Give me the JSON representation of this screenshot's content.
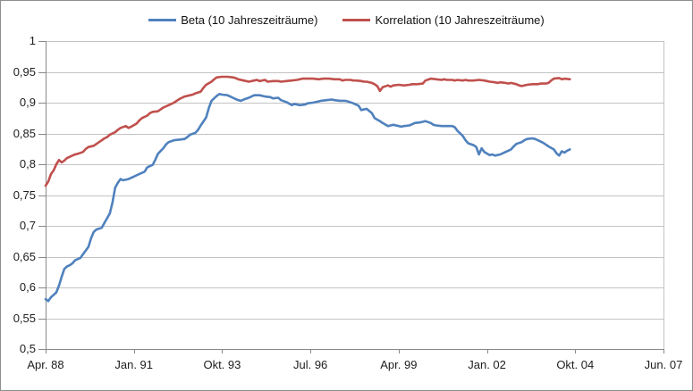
{
  "colors": {
    "background": "#ffffff",
    "border": "#8e8e8e",
    "gridline": "#c3c3c3",
    "axis": "#898989",
    "label": "#202020",
    "series_beta": "#4f81bd",
    "series_korrelation": "#c0504d"
  },
  "legend": {
    "position": "top",
    "items": [
      {
        "label": "Beta (10 Jahreszeiträume)",
        "color": "#4f81bd"
      },
      {
        "label": "Korrelation (10 Jahreszeiträume)",
        "color": "#c0504d"
      }
    ]
  },
  "chart_data": {
    "type": "line",
    "title": "",
    "grid": true,
    "legend_position": "top",
    "x_axis": {
      "unit": "months since Apr. 88",
      "range": [
        0,
        231
      ],
      "ticks": [
        {
          "t": 0,
          "label": "Apr. 88"
        },
        {
          "t": 33,
          "label": "Jan. 91"
        },
        {
          "t": 66,
          "label": "Okt. 93"
        },
        {
          "t": 99,
          "label": "Jul. 96"
        },
        {
          "t": 132,
          "label": "Apr. 99"
        },
        {
          "t": 165,
          "label": "Jan. 02"
        },
        {
          "t": 198,
          "label": "Okt. 04"
        },
        {
          "t": 231,
          "label": "Jun. 07"
        }
      ]
    },
    "y_axis": {
      "range": [
        0.5,
        1.0
      ],
      "tick_step": 0.05,
      "ticks": [
        {
          "v": 1.0,
          "label": "1"
        },
        {
          "v": 0.95,
          "label": "0,95"
        },
        {
          "v": 0.9,
          "label": "0,9"
        },
        {
          "v": 0.85,
          "label": "0,85"
        },
        {
          "v": 0.8,
          "label": "0,8"
        },
        {
          "v": 0.75,
          "label": "0,75"
        },
        {
          "v": 0.7,
          "label": "0,7"
        },
        {
          "v": 0.65,
          "label": "0,65"
        },
        {
          "v": 0.6,
          "label": "0,6"
        },
        {
          "v": 0.55,
          "label": "0,55"
        },
        {
          "v": 0.5,
          "label": "0,5"
        }
      ]
    },
    "series": [
      {
        "id": "beta",
        "name": "Beta (10 Jahreszeiträume)",
        "color": "#4f81bd",
        "points": [
          [
            0,
            0.581
          ],
          [
            1,
            0.578
          ],
          [
            2,
            0.584
          ],
          [
            3,
            0.588
          ],
          [
            4,
            0.592
          ],
          [
            5,
            0.603
          ],
          [
            6,
            0.617
          ],
          [
            7,
            0.63
          ],
          [
            8,
            0.634
          ],
          [
            9,
            0.636
          ],
          [
            10,
            0.639
          ],
          [
            11,
            0.644
          ],
          [
            13,
            0.648
          ],
          [
            14,
            0.654
          ],
          [
            16,
            0.666
          ],
          [
            17,
            0.68
          ],
          [
            18,
            0.69
          ],
          [
            19,
            0.694
          ],
          [
            21,
            0.697
          ],
          [
            22,
            0.705
          ],
          [
            24,
            0.72
          ],
          [
            25,
            0.738
          ],
          [
            26,
            0.762
          ],
          [
            27,
            0.77
          ],
          [
            28,
            0.776
          ],
          [
            29,
            0.774
          ],
          [
            31,
            0.776
          ],
          [
            33,
            0.78
          ],
          [
            35,
            0.784
          ],
          [
            37,
            0.788
          ],
          [
            38,
            0.795
          ],
          [
            40,
            0.799
          ],
          [
            41,
            0.807
          ],
          [
            42,
            0.817
          ],
          [
            44,
            0.826
          ],
          [
            45,
            0.832
          ],
          [
            46,
            0.836
          ],
          [
            48,
            0.839
          ],
          [
            50,
            0.84
          ],
          [
            52,
            0.841
          ],
          [
            53,
            0.844
          ],
          [
            54,
            0.848
          ],
          [
            56,
            0.851
          ],
          [
            57,
            0.856
          ],
          [
            58,
            0.863
          ],
          [
            60,
            0.876
          ],
          [
            61,
            0.891
          ],
          [
            62,
            0.903
          ],
          [
            64,
            0.911
          ],
          [
            65,
            0.914
          ],
          [
            66,
            0.913
          ],
          [
            68,
            0.912
          ],
          [
            69,
            0.91
          ],
          [
            70,
            0.908
          ],
          [
            71,
            0.906
          ],
          [
            72,
            0.904
          ],
          [
            73,
            0.903
          ],
          [
            74,
            0.905
          ],
          [
            76,
            0.908
          ],
          [
            77,
            0.91
          ],
          [
            78,
            0.912
          ],
          [
            80,
            0.912
          ],
          [
            81,
            0.911
          ],
          [
            82,
            0.91
          ],
          [
            84,
            0.909
          ],
          [
            85,
            0.907
          ],
          [
            87,
            0.908
          ],
          [
            88,
            0.904
          ],
          [
            90,
            0.901
          ],
          [
            92,
            0.896
          ],
          [
            93,
            0.898
          ],
          [
            95,
            0.896
          ],
          [
            97,
            0.897
          ],
          [
            98,
            0.899
          ],
          [
            100,
            0.9
          ],
          [
            102,
            0.902
          ],
          [
            103,
            0.903
          ],
          [
            105,
            0.904
          ],
          [
            107,
            0.905
          ],
          [
            108,
            0.904
          ],
          [
            110,
            0.903
          ],
          [
            112,
            0.903
          ],
          [
            113,
            0.902
          ],
          [
            115,
            0.899
          ],
          [
            117,
            0.895
          ],
          [
            118,
            0.888
          ],
          [
            120,
            0.89
          ],
          [
            122,
            0.883
          ],
          [
            123,
            0.875
          ],
          [
            125,
            0.87
          ],
          [
            126,
            0.867
          ],
          [
            128,
            0.862
          ],
          [
            129,
            0.863
          ],
          [
            130,
            0.864
          ],
          [
            132,
            0.862
          ],
          [
            133,
            0.861
          ],
          [
            134,
            0.862
          ],
          [
            136,
            0.863
          ],
          [
            137,
            0.865
          ],
          [
            138,
            0.867
          ],
          [
            140,
            0.868
          ],
          [
            141,
            0.869
          ],
          [
            142,
            0.87
          ],
          [
            144,
            0.867
          ],
          [
            145,
            0.864
          ],
          [
            146,
            0.863
          ],
          [
            148,
            0.862
          ],
          [
            150,
            0.862
          ],
          [
            152,
            0.862
          ],
          [
            153,
            0.86
          ],
          [
            154,
            0.854
          ],
          [
            156,
            0.846
          ],
          [
            157,
            0.839
          ],
          [
            158,
            0.834
          ],
          [
            160,
            0.831
          ],
          [
            161,
            0.828
          ],
          [
            162,
            0.816
          ],
          [
            163,
            0.826
          ],
          [
            164,
            0.82
          ],
          [
            166,
            0.815
          ],
          [
            167,
            0.816
          ],
          [
            168,
            0.814
          ],
          [
            170,
            0.816
          ],
          [
            171,
            0.818
          ],
          [
            172,
            0.82
          ],
          [
            174,
            0.824
          ],
          [
            175,
            0.829
          ],
          [
            176,
            0.833
          ],
          [
            178,
            0.836
          ],
          [
            179,
            0.839
          ],
          [
            180,
            0.841
          ],
          [
            182,
            0.842
          ],
          [
            183,
            0.841
          ],
          [
            184,
            0.839
          ],
          [
            186,
            0.835
          ],
          [
            187,
            0.832
          ],
          [
            188,
            0.829
          ],
          [
            190,
            0.824
          ],
          [
            191,
            0.818
          ],
          [
            192,
            0.814
          ],
          [
            193,
            0.821
          ],
          [
            194,
            0.819
          ],
          [
            195,
            0.822
          ],
          [
            196,
            0.824
          ]
        ]
      },
      {
        "id": "korrelation",
        "name": "Korrelation (10 Jahreszeiträume)",
        "color": "#c0504d",
        "points": [
          [
            0,
            0.765
          ],
          [
            1,
            0.772
          ],
          [
            2,
            0.784
          ],
          [
            3,
            0.79
          ],
          [
            4,
            0.8
          ],
          [
            5,
            0.807
          ],
          [
            6,
            0.803
          ],
          [
            7,
            0.806
          ],
          [
            8,
            0.81
          ],
          [
            10,
            0.814
          ],
          [
            11,
            0.816
          ],
          [
            12,
            0.817
          ],
          [
            14,
            0.82
          ],
          [
            15,
            0.825
          ],
          [
            16,
            0.828
          ],
          [
            18,
            0.83
          ],
          [
            20,
            0.836
          ],
          [
            22,
            0.842
          ],
          [
            23,
            0.844
          ],
          [
            24,
            0.848
          ],
          [
            26,
            0.852
          ],
          [
            27,
            0.856
          ],
          [
            28,
            0.859
          ],
          [
            30,
            0.862
          ],
          [
            31,
            0.859
          ],
          [
            32,
            0.861
          ],
          [
            34,
            0.866
          ],
          [
            35,
            0.871
          ],
          [
            36,
            0.875
          ],
          [
            38,
            0.879
          ],
          [
            39,
            0.883
          ],
          [
            40,
            0.885
          ],
          [
            42,
            0.886
          ],
          [
            43,
            0.889
          ],
          [
            44,
            0.892
          ],
          [
            46,
            0.896
          ],
          [
            48,
            0.9
          ],
          [
            49,
            0.903
          ],
          [
            50,
            0.906
          ],
          [
            51,
            0.908
          ],
          [
            52,
            0.91
          ],
          [
            54,
            0.912
          ],
          [
            55,
            0.913
          ],
          [
            56,
            0.915
          ],
          [
            58,
            0.918
          ],
          [
            59,
            0.924
          ],
          [
            60,
            0.929
          ],
          [
            62,
            0.934
          ],
          [
            63,
            0.938
          ],
          [
            64,
            0.941
          ],
          [
            66,
            0.942
          ],
          [
            68,
            0.942
          ],
          [
            70,
            0.941
          ],
          [
            71,
            0.94
          ],
          [
            72,
            0.938
          ],
          [
            74,
            0.936
          ],
          [
            75,
            0.935
          ],
          [
            76,
            0.934
          ],
          [
            78,
            0.936
          ],
          [
            79,
            0.937
          ],
          [
            80,
            0.935
          ],
          [
            82,
            0.937
          ],
          [
            83,
            0.934
          ],
          [
            85,
            0.935
          ],
          [
            87,
            0.935
          ],
          [
            88,
            0.934
          ],
          [
            90,
            0.935
          ],
          [
            92,
            0.936
          ],
          [
            94,
            0.937
          ],
          [
            95,
            0.938
          ],
          [
            96,
            0.939
          ],
          [
            98,
            0.939
          ],
          [
            100,
            0.939
          ],
          [
            102,
            0.938
          ],
          [
            104,
            0.939
          ],
          [
            106,
            0.939
          ],
          [
            108,
            0.938
          ],
          [
            110,
            0.938
          ],
          [
            111,
            0.936
          ],
          [
            112,
            0.937
          ],
          [
            114,
            0.937
          ],
          [
            115,
            0.936
          ],
          [
            116,
            0.936
          ],
          [
            118,
            0.935
          ],
          [
            119,
            0.934
          ],
          [
            120,
            0.934
          ],
          [
            122,
            0.932
          ],
          [
            123,
            0.93
          ],
          [
            124,
            0.927
          ],
          [
            125,
            0.919
          ],
          [
            126,
            0.925
          ],
          [
            128,
            0.928
          ],
          [
            129,
            0.926
          ],
          [
            130,
            0.928
          ],
          [
            132,
            0.929
          ],
          [
            134,
            0.928
          ],
          [
            136,
            0.929
          ],
          [
            137,
            0.93
          ],
          [
            139,
            0.93
          ],
          [
            141,
            0.931
          ],
          [
            142,
            0.936
          ],
          [
            144,
            0.939
          ],
          [
            146,
            0.938
          ],
          [
            148,
            0.937
          ],
          [
            149,
            0.938
          ],
          [
            150,
            0.937
          ],
          [
            152,
            0.937
          ],
          [
            153,
            0.936
          ],
          [
            154,
            0.937
          ],
          [
            156,
            0.936
          ],
          [
            157,
            0.937
          ],
          [
            158,
            0.936
          ],
          [
            160,
            0.936
          ],
          [
            162,
            0.937
          ],
          [
            164,
            0.936
          ],
          [
            165,
            0.935
          ],
          [
            166,
            0.934
          ],
          [
            168,
            0.933
          ],
          [
            169,
            0.932
          ],
          [
            170,
            0.933
          ],
          [
            172,
            0.932
          ],
          [
            173,
            0.931
          ],
          [
            174,
            0.932
          ],
          [
            176,
            0.93
          ],
          [
            177,
            0.928
          ],
          [
            178,
            0.927
          ],
          [
            180,
            0.929
          ],
          [
            182,
            0.93
          ],
          [
            184,
            0.93
          ],
          [
            185,
            0.931
          ],
          [
            187,
            0.931
          ],
          [
            188,
            0.932
          ],
          [
            189,
            0.936
          ],
          [
            190,
            0.939
          ],
          [
            192,
            0.94
          ],
          [
            193,
            0.938
          ],
          [
            194,
            0.939
          ],
          [
            196,
            0.938
          ]
        ]
      }
    ]
  }
}
